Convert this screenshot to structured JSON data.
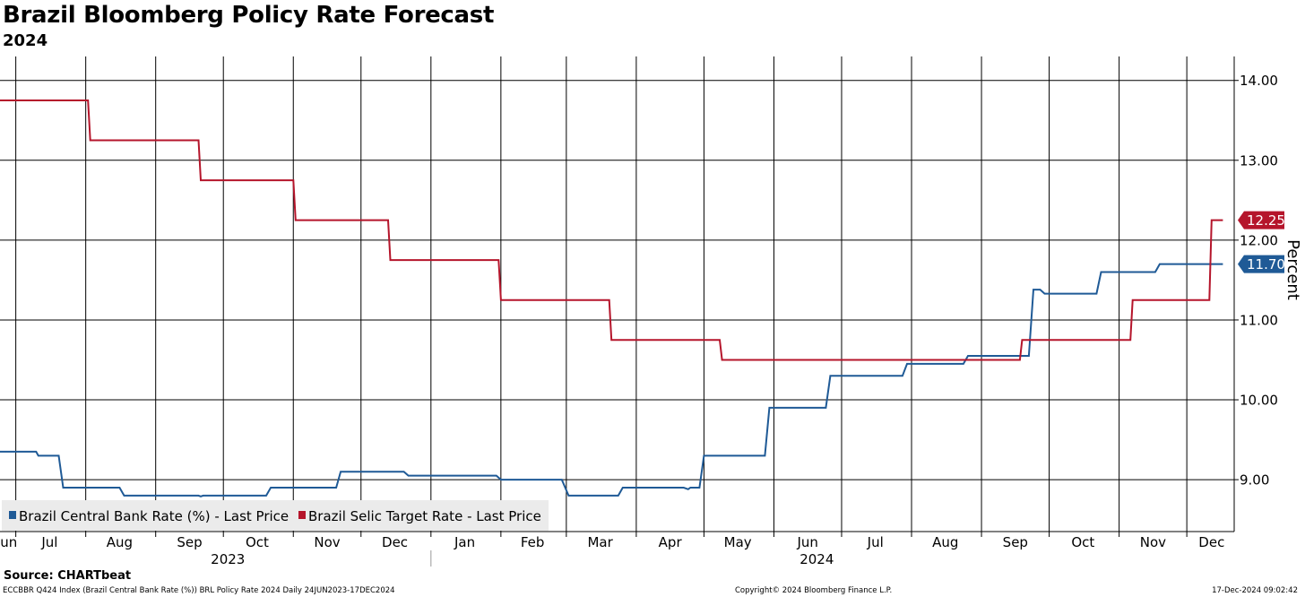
{
  "chart_data": {
    "type": "line",
    "title": "Brazil Bloomberg Policy Rate Forecast",
    "subtitle": "2024",
    "ylabel": "Percent",
    "ylim": [
      8.35,
      14.3
    ],
    "yticks": [
      9.0,
      10.0,
      11.0,
      12.0,
      13.0,
      14.0
    ],
    "ytick_labels": [
      "9.00",
      "10.00",
      "11.00",
      "12.00",
      "13.00",
      "14.00"
    ],
    "grid": true,
    "legend_position": "bottom-left",
    "xlim": [
      "2023-06-24",
      "2024-12-22"
    ],
    "month_ticks": [
      "2023-07-01",
      "2023-08-01",
      "2023-09-01",
      "2023-10-01",
      "2023-11-01",
      "2023-12-01",
      "2024-01-01",
      "2024-02-01",
      "2024-03-01",
      "2024-04-01",
      "2024-05-01",
      "2024-06-01",
      "2024-07-01",
      "2024-08-01",
      "2024-09-01",
      "2024-10-01",
      "2024-11-01",
      "2024-12-01"
    ],
    "month_labels": [
      {
        "label": "Jun",
        "date": "2023-06-27"
      },
      {
        "label": "Jul",
        "date": "2023-07-16"
      },
      {
        "label": "Aug",
        "date": "2023-08-16"
      },
      {
        "label": "Sep",
        "date": "2023-09-16"
      },
      {
        "label": "Oct",
        "date": "2023-10-16"
      },
      {
        "label": "Nov",
        "date": "2023-11-16"
      },
      {
        "label": "Dec",
        "date": "2023-12-16"
      },
      {
        "label": "Jan",
        "date": "2024-01-16"
      },
      {
        "label": "Feb",
        "date": "2024-02-15"
      },
      {
        "label": "Mar",
        "date": "2024-03-16"
      },
      {
        "label": "Apr",
        "date": "2024-04-16"
      },
      {
        "label": "May",
        "date": "2024-05-16"
      },
      {
        "label": "Jun",
        "date": "2024-06-16"
      },
      {
        "label": "Jul",
        "date": "2024-07-16"
      },
      {
        "label": "Aug",
        "date": "2024-08-16"
      },
      {
        "label": "Sep",
        "date": "2024-09-16"
      },
      {
        "label": "Oct",
        "date": "2024-10-16"
      },
      {
        "label": "Nov",
        "date": "2024-11-16"
      },
      {
        "label": "Dec",
        "date": "2024-12-12"
      }
    ],
    "year_labels": [
      {
        "label": "2023",
        "date": "2023-10-03"
      },
      {
        "label": "2024",
        "date": "2024-06-20"
      }
    ],
    "year_divider": "2024-01-01",
    "series": [
      {
        "name": "Brazil Central Bank Rate (%) - Last Price",
        "color": "#1f5a96",
        "last_label": "11.70",
        "points": [
          [
            "2023-06-24",
            9.35
          ],
          [
            "2023-07-10",
            9.35
          ],
          [
            "2023-07-11",
            9.3
          ],
          [
            "2023-07-20",
            9.3
          ],
          [
            "2023-07-22",
            8.9
          ],
          [
            "2023-08-16",
            8.9
          ],
          [
            "2023-08-18",
            8.8
          ],
          [
            "2023-09-20",
            8.8
          ],
          [
            "2023-09-21",
            8.79
          ],
          [
            "2023-09-22",
            8.8
          ],
          [
            "2023-10-20",
            8.8
          ],
          [
            "2023-10-22",
            8.9
          ],
          [
            "2023-11-20",
            8.9
          ],
          [
            "2023-11-22",
            9.1
          ],
          [
            "2023-12-20",
            9.1
          ],
          [
            "2023-12-22",
            9.05
          ],
          [
            "2024-01-30",
            9.05
          ],
          [
            "2024-02-01",
            9.0
          ],
          [
            "2024-02-28",
            9.0
          ],
          [
            "2024-03-02",
            8.8
          ],
          [
            "2024-03-24",
            8.8
          ],
          [
            "2024-03-26",
            8.9
          ],
          [
            "2024-04-22",
            8.9
          ],
          [
            "2024-04-24",
            8.88
          ],
          [
            "2024-04-25",
            8.9
          ],
          [
            "2024-04-29",
            8.9
          ],
          [
            "2024-05-01",
            9.3
          ],
          [
            "2024-05-28",
            9.3
          ],
          [
            "2024-05-30",
            9.9
          ],
          [
            "2024-06-24",
            9.9
          ],
          [
            "2024-06-26",
            10.3
          ],
          [
            "2024-07-28",
            10.3
          ],
          [
            "2024-07-30",
            10.45
          ],
          [
            "2024-08-24",
            10.45
          ],
          [
            "2024-08-26",
            10.55
          ],
          [
            "2024-09-22",
            10.55
          ],
          [
            "2024-09-24",
            11.38
          ],
          [
            "2024-09-27",
            11.38
          ],
          [
            "2024-09-29",
            11.33
          ],
          [
            "2024-10-22",
            11.33
          ],
          [
            "2024-10-24",
            11.6
          ],
          [
            "2024-11-17",
            11.6
          ],
          [
            "2024-11-19",
            11.7
          ],
          [
            "2024-12-17",
            11.7
          ]
        ]
      },
      {
        "name": "Brazil Selic Target Rate - Last Price",
        "color": "#b5152b",
        "last_label": "12.25",
        "points": [
          [
            "2023-06-24",
            13.75
          ],
          [
            "2023-08-02",
            13.75
          ],
          [
            "2023-08-03",
            13.25
          ],
          [
            "2023-09-20",
            13.25
          ],
          [
            "2023-09-21",
            12.75
          ],
          [
            "2023-11-01",
            12.75
          ],
          [
            "2023-11-02",
            12.25
          ],
          [
            "2023-12-13",
            12.25
          ],
          [
            "2023-12-14",
            11.75
          ],
          [
            "2024-01-31",
            11.75
          ],
          [
            "2024-02-01",
            11.25
          ],
          [
            "2024-03-20",
            11.25
          ],
          [
            "2024-03-21",
            10.75
          ],
          [
            "2024-05-08",
            10.75
          ],
          [
            "2024-05-09",
            10.5
          ],
          [
            "2024-09-18",
            10.5
          ],
          [
            "2024-09-19",
            10.75
          ],
          [
            "2024-11-06",
            10.75
          ],
          [
            "2024-11-07",
            11.25
          ],
          [
            "2024-12-11",
            11.25
          ],
          [
            "2024-12-12",
            12.25
          ],
          [
            "2024-12-17",
            12.25
          ]
        ]
      }
    ]
  },
  "footer": {
    "source": "Source: CHARTbeat",
    "left": "ECCBBR Q424 Index (Brazil Central Bank Rate (%)) BRL Policy Rate 2024  Daily 24JUN2023-17DEC2024",
    "middle": "Copyright© 2024 Bloomberg Finance L.P.",
    "right": "17-Dec-2024 09:02:42"
  }
}
